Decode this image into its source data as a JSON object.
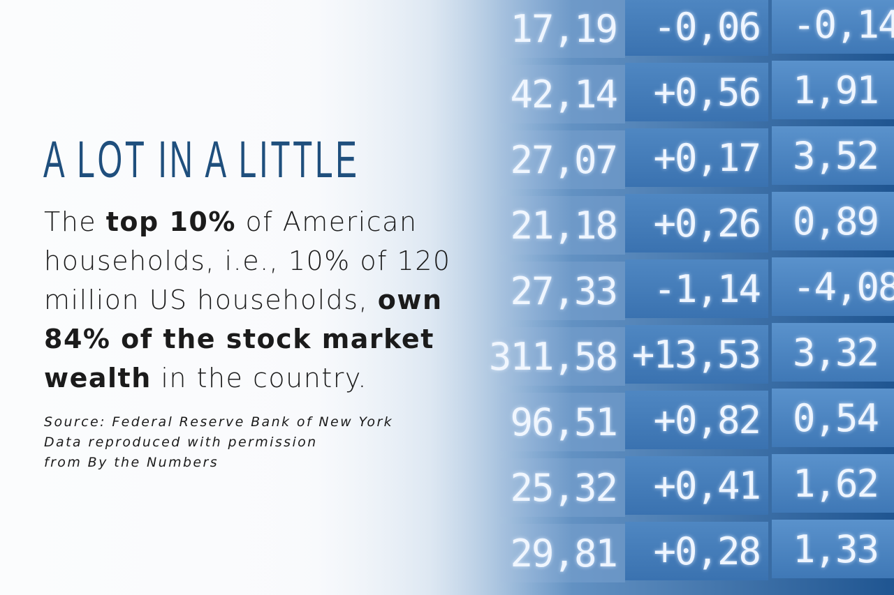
{
  "header": {
    "title": "A LOT IN A LITTLE"
  },
  "statement": {
    "lines": [
      [
        {
          "text": "The ",
          "bold": false
        },
        {
          "text": "top 10%",
          "bold": true
        },
        {
          "text": " of American",
          "bold": false
        }
      ],
      [
        {
          "text": "households, i.e., 10% of 120",
          "bold": false
        }
      ],
      [
        {
          "text": "million US households, ",
          "bold": false
        },
        {
          "text": "own",
          "bold": true
        }
      ],
      [
        {
          "text": "84% of the stock market",
          "bold": true
        }
      ],
      [
        {
          "text": "wealth",
          "bold": true
        },
        {
          "text": " in the country.",
          "bold": false
        }
      ]
    ]
  },
  "source": {
    "lines": [
      "Source: Federal Reserve Bank of New York",
      "Data reproduced with permission",
      "from By the Numbers"
    ]
  },
  "board": {
    "rows": [
      [
        "17,19",
        "-0,06",
        "-0,14"
      ],
      [
        "42,14",
        "+0,56",
        "1,91"
      ],
      [
        "27,07",
        "+0,17",
        "3,52"
      ],
      [
        "21,18",
        "+0,26",
        "0,89"
      ],
      [
        "27,33",
        "-1,14",
        "-4,08"
      ],
      [
        "311,58",
        "+13,53",
        "3,32"
      ],
      [
        "96,51",
        "+0,82",
        "0,54"
      ],
      [
        "25,32",
        "+0,41",
        "1,62"
      ],
      [
        "29,81",
        "+0,28",
        "1,33"
      ]
    ]
  }
}
